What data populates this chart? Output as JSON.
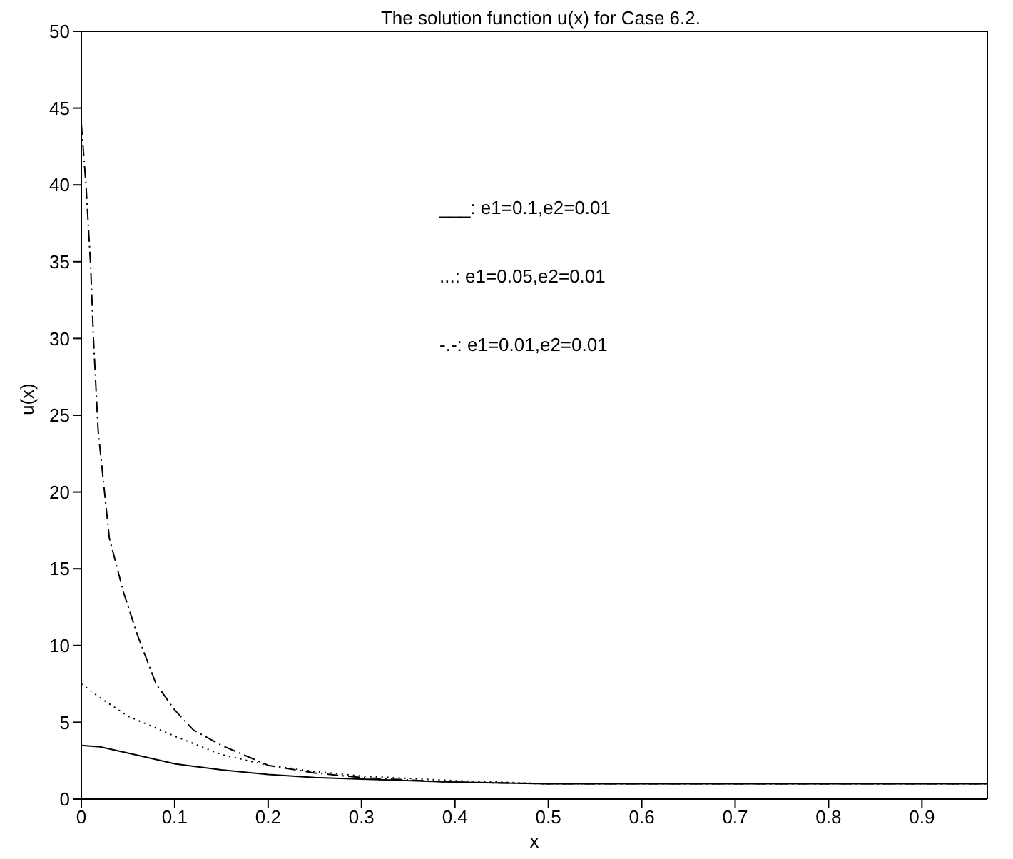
{
  "chart_data": {
    "type": "line",
    "title": "The solution function u(x) for Case 6.2.",
    "xlabel": "x",
    "ylabel": "u(x)",
    "xlim": [
      0,
      0.97
    ],
    "xticks": [
      0,
      0.1,
      0.2,
      0.3,
      0.4,
      0.5,
      0.6,
      0.7,
      0.8,
      0.9
    ],
    "ylim": [
      0,
      50
    ],
    "yticks": [
      0,
      5,
      10,
      15,
      20,
      25,
      30,
      35,
      40,
      45,
      50
    ],
    "marker": "none",
    "annotations": [
      "___: e1=0.1,e2=0.01",
      "...: e1=0.05,e2=0.01",
      "-.-: e1=0.01,e2=0.01"
    ],
    "series": [
      {
        "color": "#000000",
        "line_style": "solid",
        "x": [
          0,
          0.02,
          0.05,
          0.1,
          0.15,
          0.2,
          0.25,
          0.3,
          0.4,
          0.5,
          0.6,
          0.7,
          0.8,
          0.9,
          0.97
        ],
        "values": [
          3.5,
          3.4,
          3.0,
          2.3,
          1.9,
          1.6,
          1.4,
          1.3,
          1.1,
          1.0,
          1.0,
          1.0,
          1.0,
          1.0,
          1.0
        ]
      },
      {
        "color": "#000000",
        "line_style": "dotted",
        "x": [
          0,
          0.02,
          0.05,
          0.1,
          0.15,
          0.2,
          0.25,
          0.3,
          0.4,
          0.5,
          0.6,
          0.7,
          0.8,
          0.9,
          0.97
        ],
        "values": [
          7.5,
          6.6,
          5.4,
          4.1,
          2.9,
          2.2,
          1.8,
          1.5,
          1.2,
          1.0,
          1.0,
          1.0,
          1.0,
          1.0,
          1.0
        ]
      },
      {
        "color": "#000000",
        "line_style": "dashed",
        "x": [
          0,
          0.005,
          0.01,
          0.013,
          0.018,
          0.025,
          0.03,
          0.045,
          0.06,
          0.08,
          0.1,
          0.12,
          0.15,
          0.2,
          0.25,
          0.3,
          0.4,
          0.5,
          0.6,
          0.7,
          0.8,
          0.9,
          0.97
        ],
        "values": [
          44,
          40,
          34.7,
          30,
          24,
          19.9,
          17,
          13.5,
          10.7,
          7.5,
          5.8,
          4.5,
          3.5,
          2.2,
          1.7,
          1.4,
          1.1,
          1.0,
          1.0,
          1.0,
          1.0,
          1.0,
          1.0
        ]
      }
    ]
  }
}
